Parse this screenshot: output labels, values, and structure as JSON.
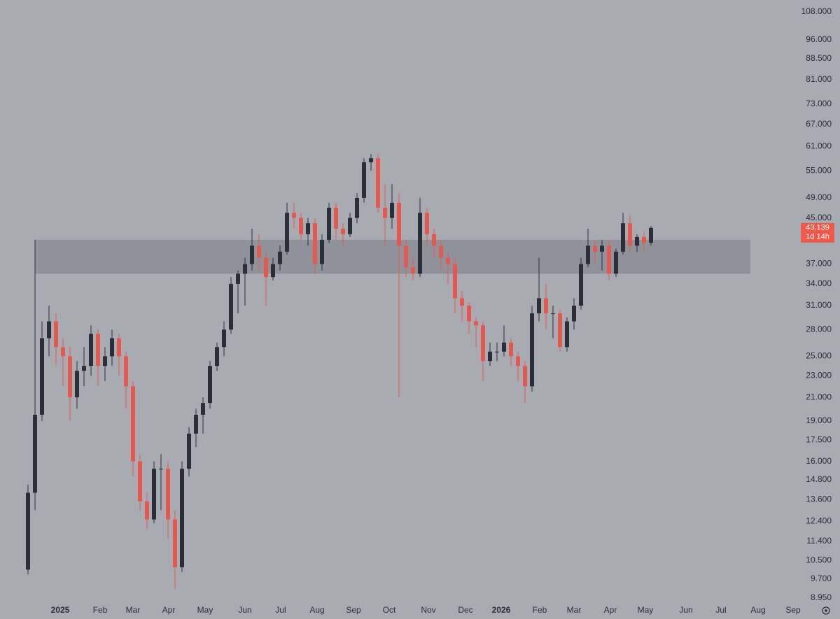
{
  "chart_data": {
    "type": "candlestick",
    "log_scale": true,
    "grid": false,
    "up_color": "#2a2e39",
    "down_color": "#e5584f",
    "zone": [
      35.5,
      41
    ],
    "zone_color": "#8b8d95",
    "categories": [
      null,
      null,
      null,
      null,
      null,
      null,
      null,
      null,
      null,
      null,
      null,
      null,
      null,
      null,
      null,
      null,
      null,
      null,
      null,
      null,
      null,
      null,
      null,
      null,
      null,
      null,
      null,
      null,
      null,
      null,
      null,
      null,
      null,
      null,
      null,
      null,
      null,
      null,
      null,
      null,
      null,
      null,
      null,
      null,
      null,
      null,
      null,
      null,
      null,
      null,
      null,
      null,
      null,
      null,
      null,
      null,
      null,
      null,
      null,
      null,
      null,
      null,
      null,
      null,
      null,
      null,
      null,
      null,
      null,
      null,
      null,
      null,
      null,
      null,
      null,
      null,
      null,
      null,
      null,
      null,
      null,
      null,
      null,
      null,
      null,
      null,
      null,
      null,
      null,
      null
    ],
    "open": [
      10.1,
      14,
      19.5,
      27,
      29,
      26,
      25,
      21,
      23.5,
      24,
      27.5,
      24,
      25,
      27,
      25,
      22,
      16,
      13.5,
      12.5,
      15.5,
      15.5,
      12.5,
      10.2,
      15.5,
      18,
      19.5,
      20.5,
      24,
      26,
      28,
      34,
      35.5,
      37,
      40,
      38,
      35,
      37,
      39,
      46,
      45,
      42,
      44,
      37,
      41,
      47,
      43,
      42,
      45,
      49,
      57,
      58,
      47,
      45,
      48,
      40,
      36.5,
      35.5,
      46,
      42,
      40,
      38,
      37,
      32,
      31,
      29,
      28.5,
      24.5,
      25.5,
      25.5,
      26.5,
      25,
      24,
      22,
      30,
      32,
      30,
      30,
      26,
      29,
      31,
      37,
      40,
      39,
      40,
      35.5,
      39,
      44,
      40,
      41.5,
      40.5
    ],
    "high": [
      14.5,
      41,
      29,
      31,
      30,
      27,
      26,
      24.5,
      26,
      28.5,
      28,
      26,
      28,
      27.5,
      25.5,
      22.5,
      16.5,
      14,
      16,
      16.5,
      16,
      13,
      16,
      18.5,
      20,
      21,
      24.5,
      26.5,
      29,
      35,
      36,
      38,
      43,
      42,
      39,
      38,
      40,
      48,
      48,
      46,
      45,
      45,
      42,
      48,
      48,
      44,
      46,
      50,
      58,
      59,
      59,
      52,
      52,
      50,
      41,
      38,
      49,
      47,
      43,
      41,
      39,
      38,
      33,
      31.5,
      29.5,
      29,
      26.5,
      26.5,
      28.5,
      27,
      25.5,
      24.5,
      31,
      38,
      34,
      31,
      30.5,
      29.5,
      32,
      38,
      43,
      41,
      41,
      41,
      39.5,
      46,
      45.5,
      42,
      42.5,
      43.5
    ],
    "low": [
      9.9,
      13,
      19,
      25,
      24,
      22,
      19,
      20,
      22,
      23,
      22,
      22.5,
      24,
      23,
      20,
      15,
      13,
      12,
      12.3,
      13,
      11.5,
      9.3,
      10,
      15,
      17,
      18,
      20,
      23.5,
      25,
      27.5,
      30,
      31,
      36,
      36,
      31,
      34.5,
      36,
      38.5,
      43,
      41,
      40,
      35.5,
      36,
      40.5,
      41,
      40,
      41.5,
      44,
      48,
      55,
      46,
      40,
      43,
      21,
      35,
      34.5,
      35,
      40,
      38,
      36,
      34,
      30,
      29,
      27.5,
      26,
      22.5,
      24,
      24.5,
      25,
      24,
      22.5,
      20.5,
      21.5,
      29,
      28,
      27,
      25.5,
      25.5,
      28,
      30.5,
      36.5,
      37,
      36,
      34.5,
      35,
      38.5,
      39,
      39,
      39,
      40
    ],
    "close": [
      14,
      19.5,
      27,
      29,
      26,
      25,
      21,
      23.5,
      24,
      27.5,
      24,
      25,
      27,
      25,
      22,
      16,
      13.5,
      12.5,
      15.5,
      15.5,
      12.5,
      10.2,
      15.5,
      18,
      19.5,
      20.5,
      24,
      26,
      28,
      34,
      35.5,
      37,
      40,
      38,
      35,
      37,
      39,
      46,
      45,
      42,
      44,
      37,
      41,
      47,
      43,
      42,
      45,
      49,
      57,
      58,
      47,
      45,
      48,
      40,
      36.5,
      35.5,
      46,
      42,
      40,
      38,
      37,
      32,
      31,
      29,
      28.5,
      24.5,
      25.5,
      25.5,
      26.5,
      25,
      24,
      22,
      30,
      32,
      30,
      30,
      26,
      29,
      31,
      37,
      40,
      39,
      40,
      35.5,
      39,
      44,
      40,
      41.5,
      40.5,
      43.139
    ],
    "countdown": "1d 14h",
    "xlim": [
      -1,
      110
    ],
    "xticks": [
      {
        "value": 4.6,
        "label": "2025"
      },
      {
        "value": 10.3,
        "label": "Feb"
      },
      {
        "value": 15,
        "label": "Mar"
      },
      {
        "value": 20.1,
        "label": "Apr"
      },
      {
        "value": 25.3,
        "label": "May"
      },
      {
        "value": 31,
        "label": "Jun"
      },
      {
        "value": 36.1,
        "label": "Jul"
      },
      {
        "value": 41.3,
        "label": "Aug"
      },
      {
        "value": 46.5,
        "label": "Sep"
      },
      {
        "value": 51.6,
        "label": "Oct"
      },
      {
        "value": 57.2,
        "label": "Nov"
      },
      {
        "value": 62.5,
        "label": "Dec"
      },
      {
        "value": 67.6,
        "label": "2026"
      },
      {
        "value": 73.1,
        "label": "Feb"
      },
      {
        "value": 78,
        "label": "Mar"
      },
      {
        "value": 83.2,
        "label": "Apr"
      },
      {
        "value": 88.2,
        "label": "May"
      },
      {
        "value": 94,
        "label": "Jun"
      },
      {
        "value": 99,
        "label": "Jul"
      },
      {
        "value": 104.3,
        "label": "Aug"
      },
      {
        "value": 109.3,
        "label": "Sep"
      }
    ],
    "ylim": [
      8.82,
      113.6
    ],
    "yticks": [
      {
        "value": 108,
        "label": "108.000"
      },
      {
        "value": 96,
        "label": "96.000"
      },
      {
        "value": 88.5,
        "label": "88.500"
      },
      {
        "value": 81,
        "label": "81.000"
      },
      {
        "value": 73,
        "label": "73.000"
      },
      {
        "value": 67,
        "label": "67.000"
      },
      {
        "value": 61,
        "label": "61.000"
      },
      {
        "value": 55,
        "label": "55.000"
      },
      {
        "value": 49,
        "label": "49.000"
      },
      {
        "value": 45,
        "label": "45.000"
      },
      {
        "value": 37,
        "label": "37.000"
      },
      {
        "value": 34,
        "label": "34.000"
      },
      {
        "value": 31,
        "label": "31.000"
      },
      {
        "value": 28,
        "label": "28.000"
      },
      {
        "value": 25,
        "label": "25.000"
      },
      {
        "value": 23,
        "label": "23.000"
      },
      {
        "value": 21,
        "label": "21.000"
      },
      {
        "value": 19,
        "label": "19.000"
      },
      {
        "value": 17.5,
        "label": "17.500"
      },
      {
        "value": 16,
        "label": "16.000"
      },
      {
        "value": 14.8,
        "label": "14.800"
      },
      {
        "value": 13.6,
        "label": "13.600"
      },
      {
        "value": 12.4,
        "label": "12.400"
      },
      {
        "value": 11.4,
        "label": "11.400"
      },
      {
        "value": 10.5,
        "label": "10.500"
      },
      {
        "value": 9.7,
        "label": "9.700"
      },
      {
        "value": 8.95,
        "label": "8.950"
      }
    ]
  }
}
